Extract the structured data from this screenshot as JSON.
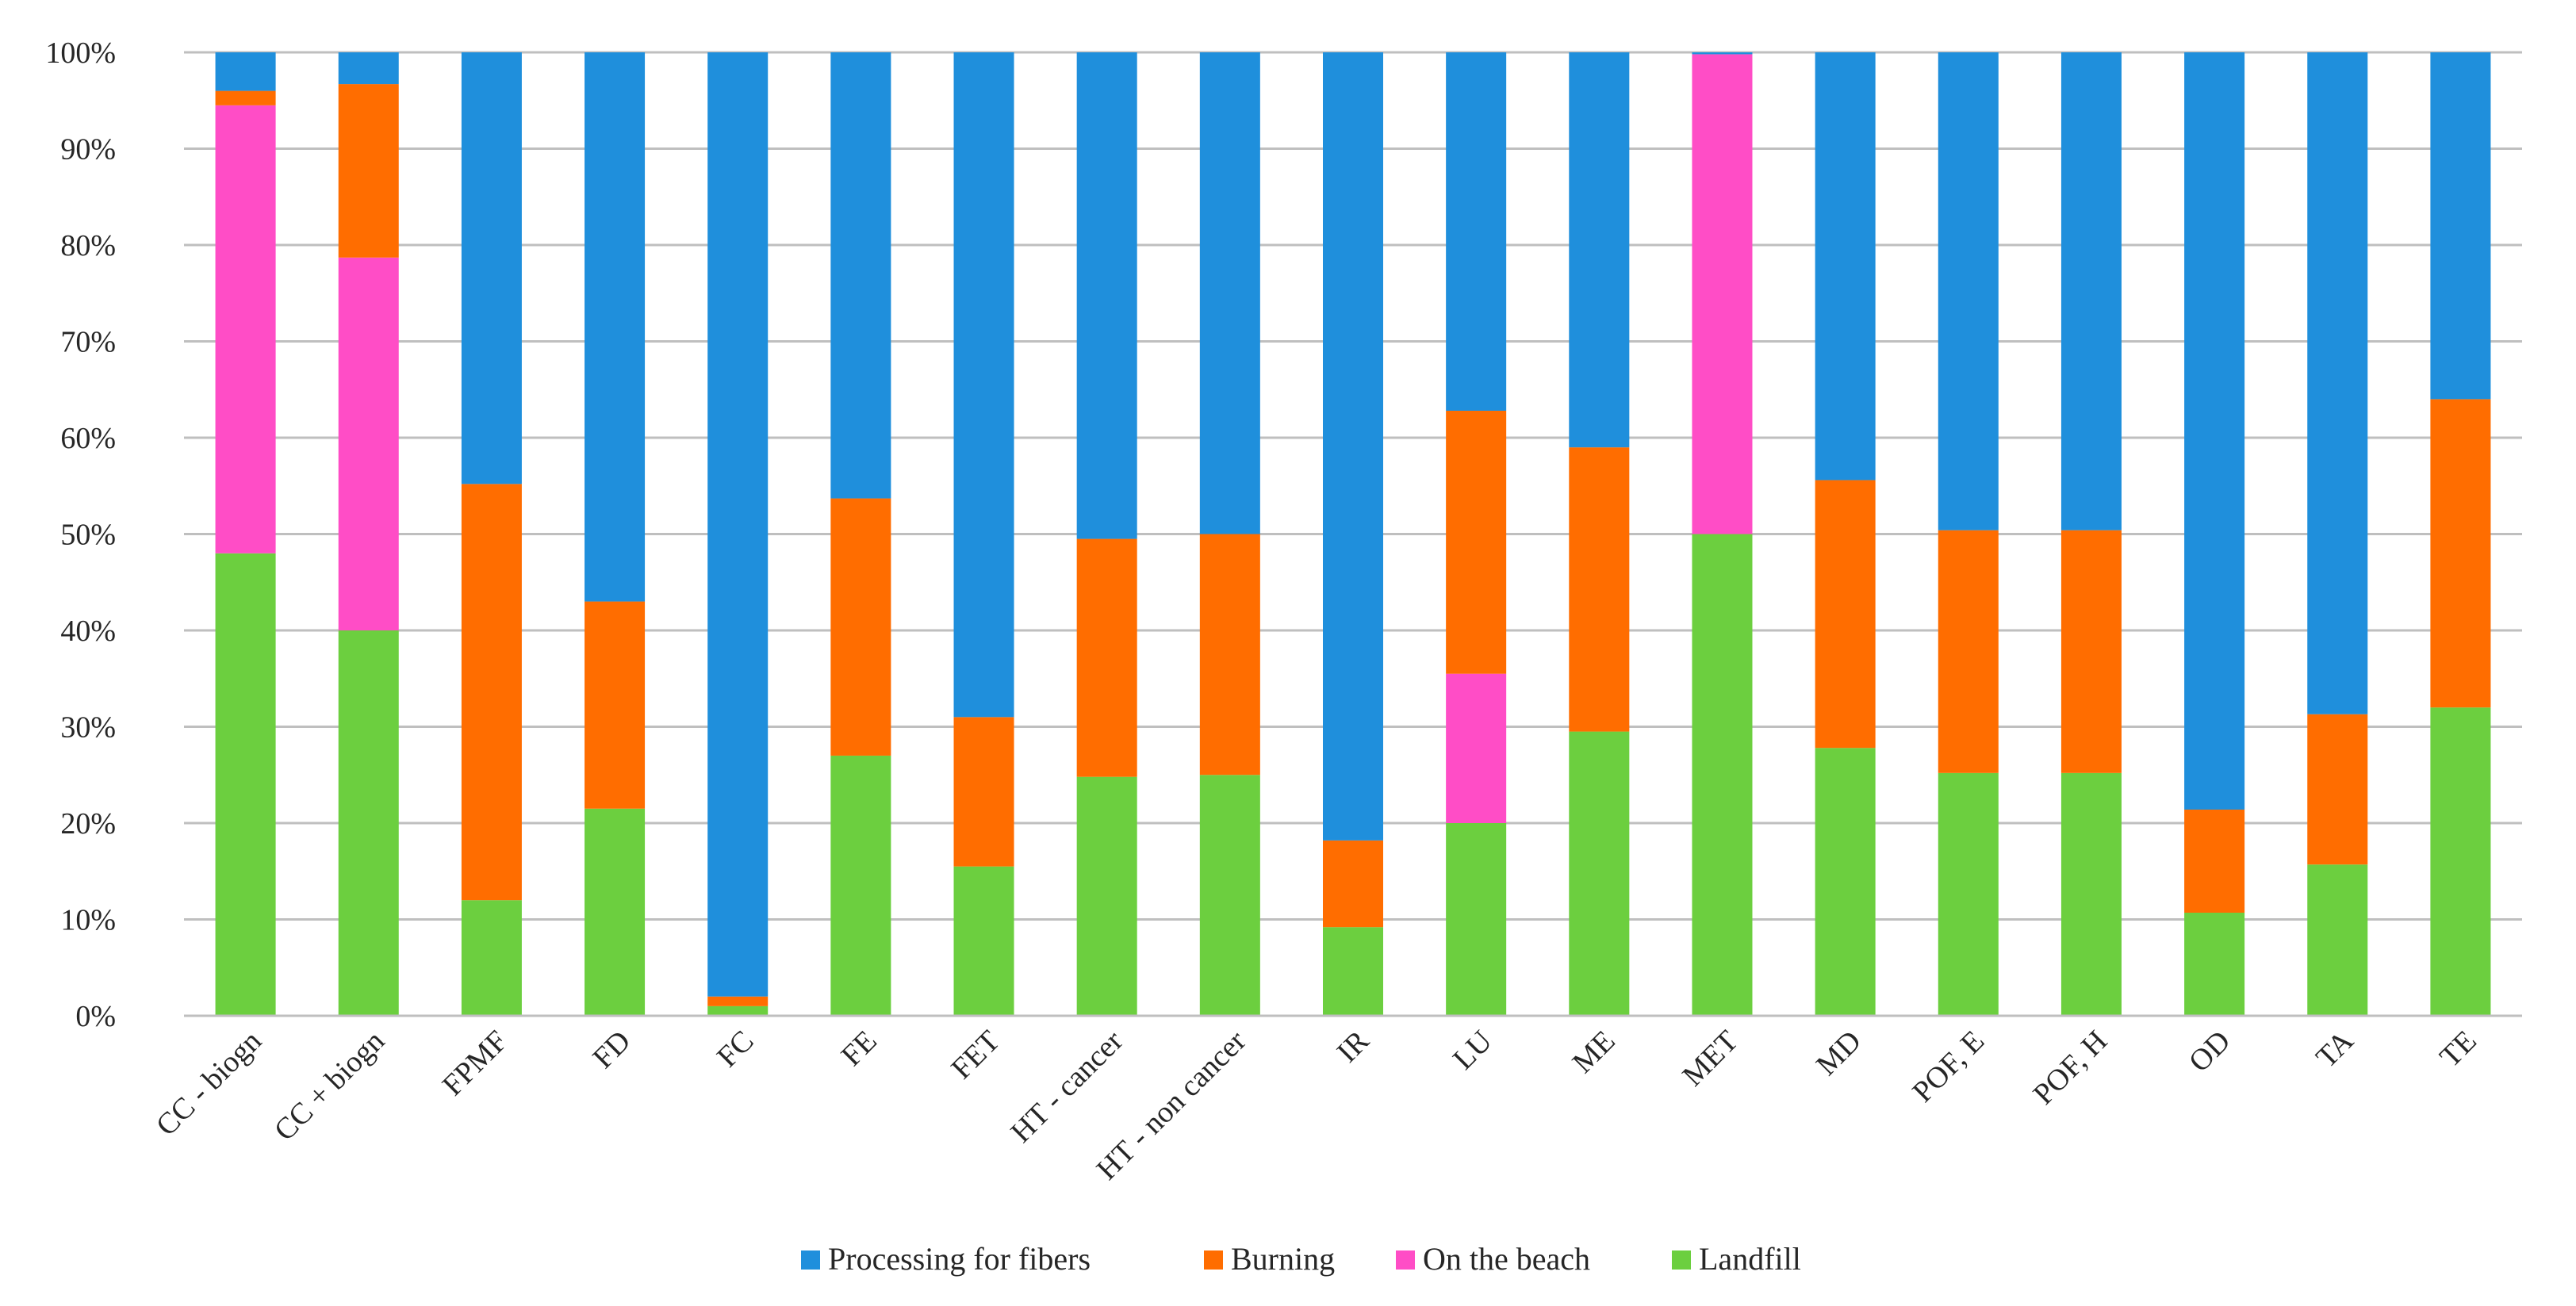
{
  "chart_data": {
    "type": "bar",
    "stacked": true,
    "percent_stacked": true,
    "title": "",
    "xlabel": "",
    "ylabel": "",
    "ylim": [
      0,
      100
    ],
    "y_ticks": [
      "0%",
      "10%",
      "20%",
      "30%",
      "40%",
      "50%",
      "60%",
      "70%",
      "80%",
      "90%",
      "100%"
    ],
    "grid": "horizontal",
    "legend_position": "bottom",
    "categories": [
      "CC - biogn",
      "CC + biogn",
      "FPMF",
      "FD",
      "FC",
      "FE",
      "FET",
      "HT - cancer",
      "HT - non cancer",
      "IR",
      "LU",
      "ME",
      "MET",
      "MD",
      "POF, E",
      "POF, H",
      "OD",
      "TA",
      "TE"
    ],
    "series": [
      {
        "name": "Landfill",
        "color": "#6ccf3f",
        "values": [
          48,
          40,
          12,
          21.5,
          1,
          27,
          15.5,
          24.8,
          25,
          9.2,
          20,
          29.5,
          50,
          27.8,
          25.2,
          25.2,
          10.7,
          15.7,
          32
        ]
      },
      {
        "name": "On the beach",
        "color": "#ff4dc6",
        "values": [
          46.5,
          38.7,
          0,
          0,
          0,
          0,
          0,
          0,
          0,
          0,
          15.5,
          0,
          49.8,
          0,
          0,
          0,
          0,
          0,
          0
        ]
      },
      {
        "name": "Burning",
        "color": "#ff6d00",
        "values": [
          1.5,
          18,
          43.2,
          21.5,
          1,
          26.7,
          15.5,
          24.7,
          25,
          9,
          27.3,
          29.5,
          0,
          27.8,
          25.2,
          25.2,
          10.7,
          15.6,
          32
        ]
      },
      {
        "name": "Processing for fibers",
        "color": "#1f8fdc",
        "values": [
          4,
          3.3,
          44.8,
          57,
          98,
          46.3,
          69,
          50.5,
          50,
          81.8,
          37.2,
          41,
          0.2,
          44.4,
          49.6,
          49.6,
          78.6,
          68.7,
          36
        ]
      }
    ],
    "legend_order": [
      "Processing for fibers",
      "Burning",
      "On the beach",
      "Landfill"
    ]
  }
}
